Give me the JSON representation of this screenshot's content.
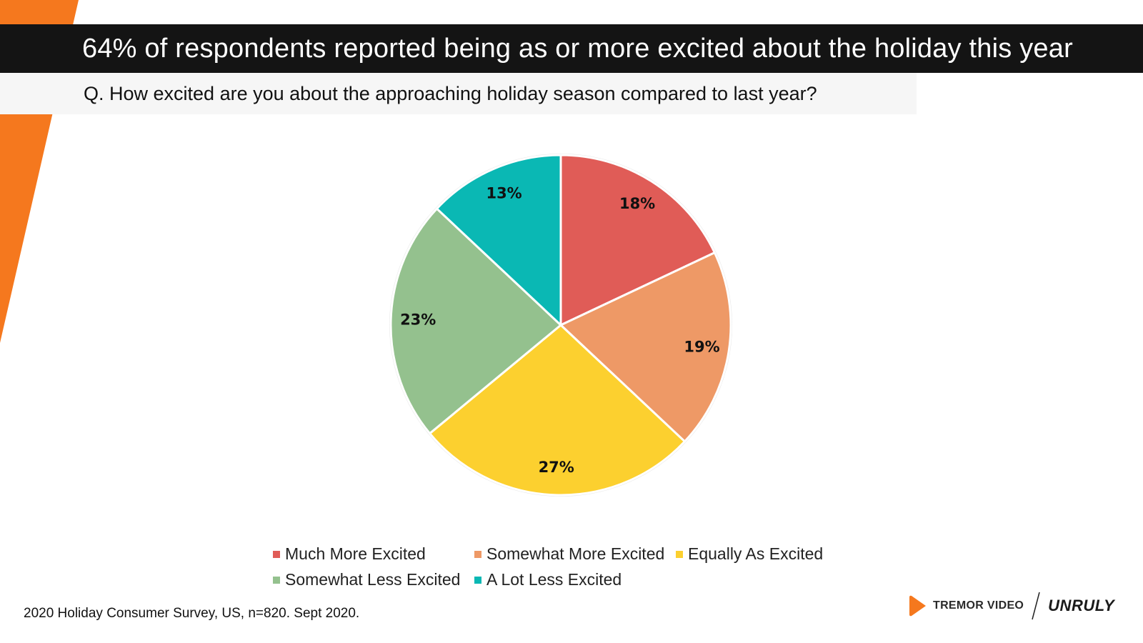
{
  "header": {
    "title": "64% of respondents reported being as or more excited about the holiday this year",
    "question": "Q. How excited are you about the approaching holiday season compared to last year?"
  },
  "chart_data": {
    "type": "pie",
    "title": "",
    "start_angle": "12 o'clock",
    "direction": "clockwise",
    "legend_position": "bottom",
    "slices": [
      {
        "label": "Much More Excited",
        "value": 18,
        "display": "18%",
        "color": "#E05C57"
      },
      {
        "label": "Somewhat More Excited",
        "value": 19,
        "display": "19%",
        "color": "#EE9966"
      },
      {
        "label": "Equally As Excited",
        "value": 27,
        "display": "27%",
        "color": "#FCD02F"
      },
      {
        "label": "Somewhat Less Excited",
        "value": 23,
        "display": "23%",
        "color": "#94C18E"
      },
      {
        "label": "A Lot Less Excited",
        "value": 13,
        "display": "13%",
        "color": "#0AB8B4"
      }
    ]
  },
  "footer": {
    "source": "2020 Holiday Consumer Survey, US, n=820. Sept 2020.",
    "brand_primary": "TREMOR VIDEO",
    "brand_secondary": "UNRULY",
    "accent_color": "#F5781E"
  }
}
